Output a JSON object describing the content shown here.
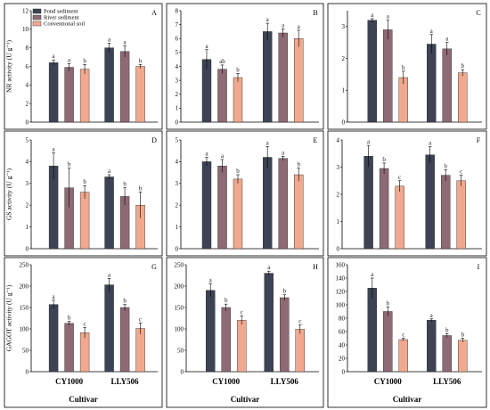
{
  "colors": {
    "pond": "#3d4354",
    "river": "#8e6a74",
    "conventional": "#f0a98e",
    "frame": "#000000"
  },
  "legend": [
    {
      "label": "Pond sediment",
      "color": "#3d4354"
    },
    {
      "label": "River sediment",
      "color": "#8e6a74"
    },
    {
      "label": "Conventional soil",
      "color": "#f0a98e"
    }
  ],
  "cultivar_label": "Cultivar",
  "chart_data": [
    {
      "panel": "A",
      "type": "bar",
      "ylabel": "NR activity (U g⁻¹)",
      "ylim": [
        0,
        12
      ],
      "ticks": [
        0,
        2,
        4,
        6,
        8,
        10,
        12
      ],
      "categories": [
        "CY1000",
        "LLY506"
      ],
      "series": [
        {
          "name": "Pond sediment",
          "values": [
            6.4,
            8.0
          ],
          "errors": [
            0.3,
            0.5
          ],
          "letters": [
            "a",
            "a"
          ]
        },
        {
          "name": "River sediment",
          "values": [
            5.9,
            7.6
          ],
          "errors": [
            0.4,
            0.6
          ],
          "letters": [
            "a",
            "a"
          ]
        },
        {
          "name": "Conventional soil",
          "values": [
            5.7,
            6.0
          ],
          "errors": [
            0.5,
            0.2
          ],
          "letters": [
            "b",
            "b"
          ]
        }
      ]
    },
    {
      "panel": "B",
      "type": "bar",
      "ylabel": "",
      "ylim": [
        0,
        8
      ],
      "ticks": [
        0,
        1,
        2,
        3,
        4,
        5,
        6,
        7,
        8
      ],
      "categories": [
        "CY1000",
        "LLY506"
      ],
      "series": [
        {
          "name": "Pond sediment",
          "values": [
            4.5,
            6.5
          ],
          "errors": [
            0.7,
            0.6
          ],
          "letters": [
            "a",
            "a"
          ]
        },
        {
          "name": "River sediment",
          "values": [
            3.8,
            6.4
          ],
          "errors": [
            0.3,
            0.3
          ],
          "letters": [
            "ab",
            "a"
          ]
        },
        {
          "name": "Conventional soil",
          "values": [
            3.2,
            6.0
          ],
          "errors": [
            0.3,
            0.6
          ],
          "letters": [
            "b",
            "a"
          ]
        }
      ]
    },
    {
      "panel": "C",
      "type": "bar",
      "ylabel": "",
      "ylim": [
        0,
        3.5
      ],
      "ticks": [
        0,
        1,
        2,
        3
      ],
      "categories": [
        "CY1000",
        "LLY506"
      ],
      "series": [
        {
          "name": "Pond sediment",
          "values": [
            3.2,
            2.45
          ],
          "errors": [
            0.05,
            0.3
          ],
          "letters": [
            "a",
            "a"
          ]
        },
        {
          "name": "River sediment",
          "values": [
            2.9,
            2.3
          ],
          "errors": [
            0.3,
            0.2
          ],
          "letters": [
            "a",
            "a"
          ]
        },
        {
          "name": "Conventional soil",
          "values": [
            1.4,
            1.55
          ],
          "errors": [
            0.2,
            0.1
          ],
          "letters": [
            "b",
            "b"
          ]
        }
      ]
    },
    {
      "panel": "D",
      "type": "bar",
      "ylabel": "GS activity (U g⁻¹)",
      "ylim": [
        0,
        5
      ],
      "ticks": [
        0,
        1,
        2,
        3,
        4,
        5
      ],
      "categories": [
        "CY1000",
        "LLY506"
      ],
      "series": [
        {
          "name": "Pond sediment",
          "values": [
            3.8,
            3.3
          ],
          "errors": [
            0.6,
            0.1
          ],
          "letters": [
            "a",
            "a"
          ]
        },
        {
          "name": "River sediment",
          "values": [
            2.8,
            2.4
          ],
          "errors": [
            0.9,
            0.4
          ],
          "letters": [
            "b",
            "b"
          ]
        },
        {
          "name": "Conventional soil",
          "values": [
            2.6,
            2.0
          ],
          "errors": [
            0.3,
            0.6
          ],
          "letters": [
            "b",
            "b"
          ]
        }
      ]
    },
    {
      "panel": "E",
      "type": "bar",
      "ylabel": "",
      "ylim": [
        0,
        5
      ],
      "ticks": [
        0,
        1,
        2,
        3,
        4,
        5
      ],
      "categories": [
        "CY1000",
        "LLY506"
      ],
      "series": [
        {
          "name": "Pond sediment",
          "values": [
            4.0,
            4.2
          ],
          "errors": [
            0.2,
            0.5
          ],
          "letters": [
            "a",
            "a"
          ]
        },
        {
          "name": "River sediment",
          "values": [
            3.8,
            4.15
          ],
          "errors": [
            0.3,
            0.1
          ],
          "letters": [
            "a",
            "a"
          ]
        },
        {
          "name": "Conventional soil",
          "values": [
            3.2,
            3.4
          ],
          "errors": [
            0.2,
            0.3
          ],
          "letters": [
            "b",
            "b"
          ]
        }
      ]
    },
    {
      "panel": "F",
      "type": "bar",
      "ylabel": "",
      "ylim": [
        0,
        4
      ],
      "ticks": [
        0,
        1,
        2,
        3,
        4
      ],
      "categories": [
        "CY1000",
        "LLY506"
      ],
      "series": [
        {
          "name": "Pond sediment",
          "values": [
            3.4,
            3.45
          ],
          "errors": [
            0.4,
            0.3
          ],
          "letters": [
            "a",
            "a"
          ]
        },
        {
          "name": "River sediment",
          "values": [
            2.95,
            2.7
          ],
          "errors": [
            0.2,
            0.2
          ],
          "letters": [
            "b",
            "b"
          ]
        },
        {
          "name": "Conventional soil",
          "values": [
            2.3,
            2.5
          ],
          "errors": [
            0.2,
            0.2
          ],
          "letters": [
            "c",
            "c"
          ]
        }
      ]
    },
    {
      "panel": "G",
      "type": "bar",
      "ylabel": "GAGOT activity (U g⁻¹)",
      "ylim": [
        0,
        250
      ],
      "ticks": [
        0,
        50,
        100,
        150,
        200,
        250
      ],
      "categories": [
        "CY1000",
        "LLY506"
      ],
      "series": [
        {
          "name": "Pond sediment",
          "values": [
            157,
            203
          ],
          "errors": [
            10,
            15
          ],
          "letters": [
            "a",
            "a"
          ]
        },
        {
          "name": "River sediment",
          "values": [
            113,
            150
          ],
          "errors": [
            5,
            7
          ],
          "letters": [
            "b",
            "b"
          ]
        },
        {
          "name": "Conventional soil",
          "values": [
            91,
            101
          ],
          "errors": [
            12,
            13
          ],
          "letters": [
            "c",
            "c"
          ]
        }
      ]
    },
    {
      "panel": "H",
      "type": "bar",
      "ylabel": "",
      "ylim": [
        0,
        250
      ],
      "ticks": [
        0,
        50,
        100,
        150,
        200,
        250
      ],
      "categories": [
        "CY1000",
        "LLY506"
      ],
      "series": [
        {
          "name": "Pond sediment",
          "values": [
            190,
            230
          ],
          "errors": [
            15,
            5
          ],
          "letters": [
            "a",
            "a"
          ]
        },
        {
          "name": "River sediment",
          "values": [
            150,
            173
          ],
          "errors": [
            8,
            7
          ],
          "letters": [
            "b",
            "b"
          ]
        },
        {
          "name": "Conventional soil",
          "values": [
            120,
            99
          ],
          "errors": [
            10,
            10
          ],
          "letters": [
            "c",
            "c"
          ]
        }
      ]
    },
    {
      "panel": "I",
      "type": "bar",
      "ylabel": "",
      "ylim": [
        0,
        160
      ],
      "ticks": [
        0,
        20,
        40,
        60,
        80,
        100,
        120,
        140,
        160
      ],
      "categories": [
        "CY1000",
        "LLY506"
      ],
      "series": [
        {
          "name": "Pond sediment",
          "values": [
            125,
            77
          ],
          "errors": [
            15,
            2
          ],
          "letters": [
            "a",
            "a"
          ]
        },
        {
          "name": "River sediment",
          "values": [
            90,
            54
          ],
          "errors": [
            7,
            3
          ],
          "letters": [
            "b",
            "b"
          ]
        },
        {
          "name": "Conventional soil",
          "values": [
            48,
            47
          ],
          "errors": [
            2,
            3
          ],
          "letters": [
            "c",
            "b"
          ]
        }
      ]
    }
  ]
}
